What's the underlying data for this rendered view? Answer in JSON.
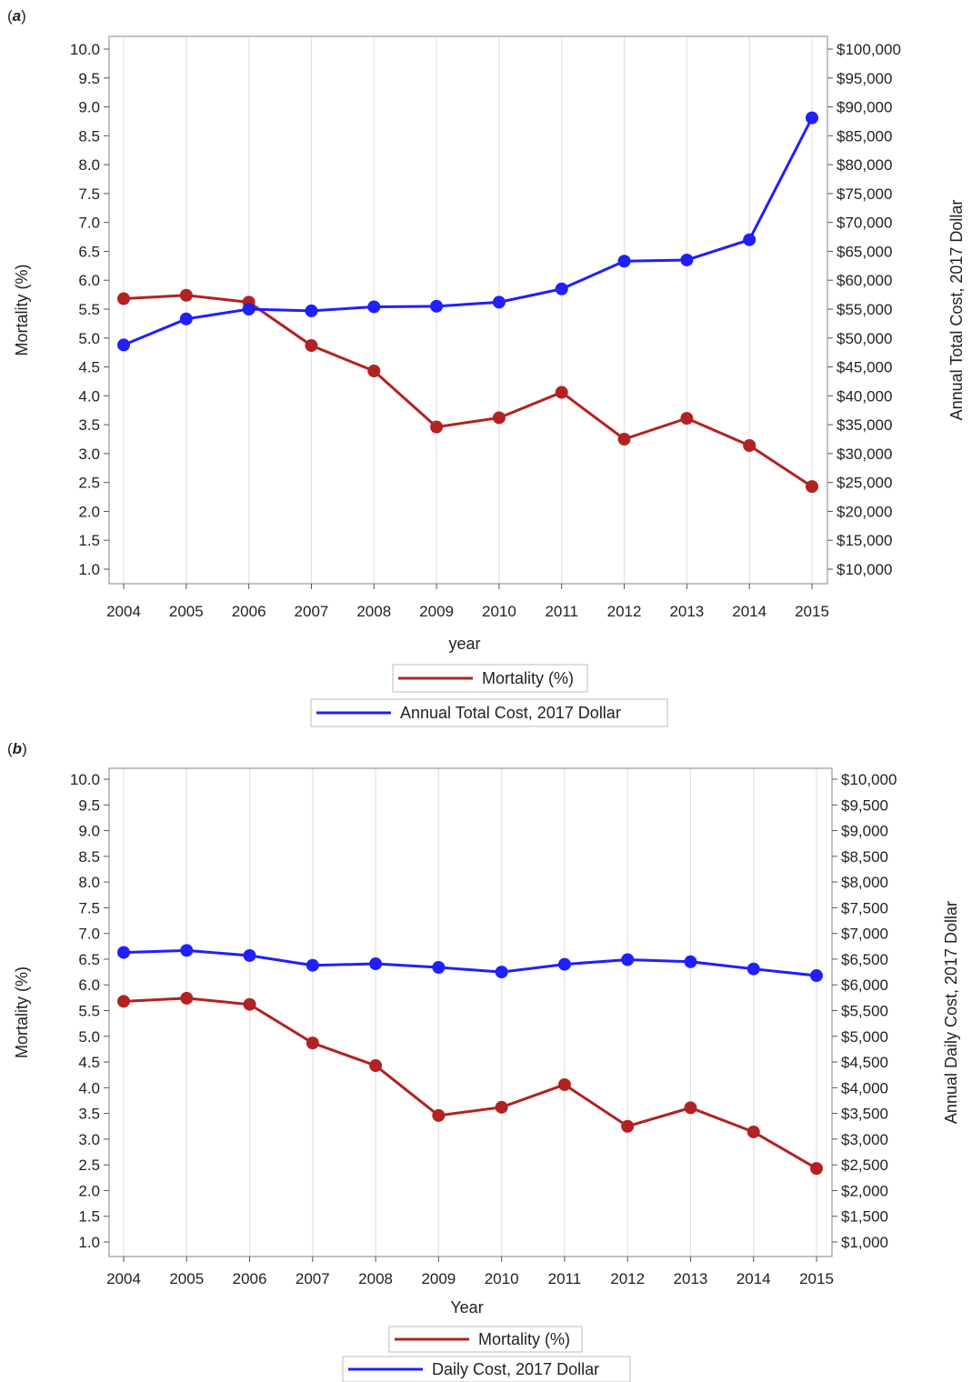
{
  "panels": [
    {
      "label_open": "(",
      "label_letter": "a",
      "label_close": ")"
    },
    {
      "label_open": "(",
      "label_letter": "b",
      "label_close": ")"
    }
  ],
  "chart_data": [
    {
      "type": "line",
      "categories": [
        "2004",
        "2005",
        "2006",
        "2007",
        "2008",
        "2009",
        "2010",
        "2011",
        "2012",
        "2013",
        "2014",
        "2015"
      ],
      "xlabel": "year",
      "ylabel": "Mortality (%)",
      "y2label": "Annual Total Cost,  2017 Dollar",
      "ylim": [
        1.0,
        10.0
      ],
      "yticks": [
        "1.0",
        "1.5",
        "2.0",
        "2.5",
        "3.0",
        "3.5",
        "4.0",
        "4.5",
        "5.0",
        "5.5",
        "6.0",
        "6.5",
        "7.0",
        "7.5",
        "8.0",
        "8.5",
        "9.0",
        "9.5",
        "10.0"
      ],
      "y2lim": [
        10000,
        100000
      ],
      "y2ticks": [
        "$10,000",
        "$15,000",
        "$20,000",
        "$25,000",
        "$30,000",
        "$35,000",
        "$40,000",
        "$45,000",
        "$50,000",
        "$55,000",
        "$60,000",
        "$65,000",
        "$70,000",
        "$75,000",
        "$80,000",
        "$85,000",
        "$90,000",
        "$95,000",
        "$100,000"
      ],
      "grid": "vertical",
      "legend_position": "bottom",
      "series": [
        {
          "name": "Mortality (%)",
          "axis": "left",
          "color": "#b22222",
          "values": [
            5.68,
            5.74,
            5.62,
            4.87,
            4.43,
            3.46,
            3.62,
            4.06,
            3.25,
            3.61,
            3.14,
            2.43
          ]
        },
        {
          "name": "Annual Total Cost, 2017 Dollar",
          "axis": "right",
          "color": "#1f1fff",
          "values": [
            48800,
            53300,
            55000,
            54700,
            55400,
            55500,
            56200,
            58500,
            63300,
            63500,
            67000,
            88100
          ]
        }
      ]
    },
    {
      "type": "line",
      "categories": [
        "2004",
        "2005",
        "2006",
        "2007",
        "2008",
        "2009",
        "2010",
        "2011",
        "2012",
        "2013",
        "2014",
        "2015"
      ],
      "xlabel": "Year",
      "ylabel": "Mortality (%)",
      "y2label": "Annual Daily Cost, 2017 Dollar",
      "ylim": [
        1.0,
        10.0
      ],
      "yticks": [
        "1.0",
        "1.5",
        "2.0",
        "2.5",
        "3.0",
        "3.5",
        "4.0",
        "4.5",
        "5.0",
        "5.5",
        "6.0",
        "6.5",
        "7.0",
        "7.5",
        "8.0",
        "8.5",
        "9.0",
        "9.5",
        "10.0"
      ],
      "y2lim": [
        1000,
        10000
      ],
      "y2ticks": [
        "$1,000",
        "$1,500",
        "$2,000",
        "$2,500",
        "$3,000",
        "$3,500",
        "$4,000",
        "$4,500",
        "$5,000",
        "$5,500",
        "$6,000",
        "$6,500",
        "$7,000",
        "$7,500",
        "$8,000",
        "$8,500",
        "$9,000",
        "$9,500",
        "$10,000"
      ],
      "grid": "vertical",
      "legend_position": "bottom",
      "series": [
        {
          "name": "Mortality (%)",
          "axis": "left",
          "color": "#b22222",
          "values": [
            5.68,
            5.74,
            5.62,
            4.87,
            4.43,
            3.46,
            3.62,
            4.06,
            3.25,
            3.61,
            3.14,
            2.43
          ]
        },
        {
          "name": "Daily Cost, 2017 Dollar",
          "axis": "right",
          "color": "#1f1fff",
          "values": [
            6630,
            6670,
            6570,
            6380,
            6410,
            6340,
            6250,
            6400,
            6490,
            6450,
            6310,
            6180
          ]
        }
      ]
    }
  ]
}
